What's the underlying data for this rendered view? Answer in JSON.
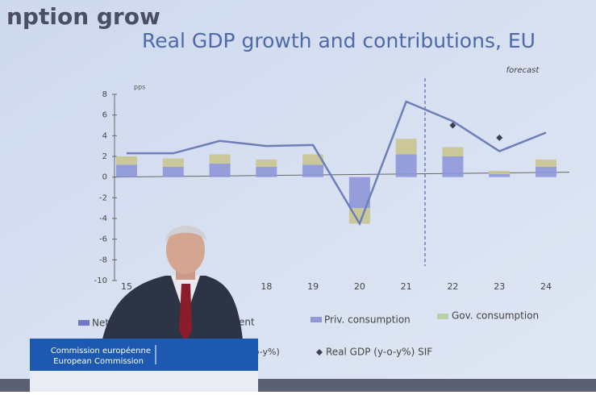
{
  "screen_heading": "nption grow",
  "chart_data": {
    "type": "bar",
    "title": "Real GDP growth and contributions, EU",
    "y_unit": "pps",
    "annotation": "forecast",
    "categories": [
      "15",
      null,
      null,
      "18",
      "19",
      "20",
      "21",
      "22",
      "23",
      "24"
    ],
    "ylim": [
      -10,
      8
    ],
    "yticks": [
      8,
      6,
      4,
      2,
      0,
      -2,
      -4,
      -6,
      -8,
      -10
    ],
    "legend_fragments": [
      "Net e",
      "ent"
    ],
    "series": [
      {
        "name": "Priv. consumption",
        "type": "bar",
        "color": "#8e97d8",
        "values": [
          1.2,
          1.0,
          1.3,
          1.0,
          1.2,
          -3.0,
          2.2,
          2.0,
          0.3,
          1.0
        ]
      },
      {
        "name": "Gov. consumption",
        "type": "bar",
        "color": "#c9c48f",
        "values": [
          0.8,
          0.8,
          0.9,
          0.7,
          1.0,
          -1.5,
          1.5,
          0.9,
          0.3,
          0.7
        ]
      },
      {
        "name": "(y-o-y%)",
        "type": "line",
        "color": "#6d7fb6",
        "values": [
          2.3,
          2.3,
          3.5,
          3.0,
          3.1,
          -4.5,
          7.3,
          5.4,
          2.5,
          4.3
        ]
      },
      {
        "name": "Real GDP (y-o-y%) SIF",
        "type": "scatter",
        "color": "#3d3f55",
        "values": [
          null,
          null,
          null,
          null,
          null,
          null,
          null,
          5.0,
          3.8,
          null
        ]
      }
    ]
  },
  "podium": {
    "line1": "Commission européenne",
    "line2": "European Commission"
  }
}
